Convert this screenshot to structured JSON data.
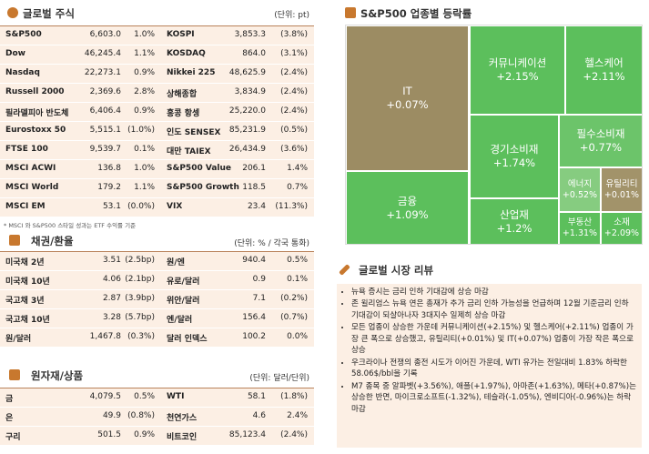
{
  "equities": {
    "title": "글로벌 주식",
    "unit": "(단위: pt)",
    "rows": [
      [
        "S&P500",
        "6,603.0",
        "1.0%",
        "KOSPI",
        "3,853.3",
        "(3.8%)"
      ],
      [
        "Dow",
        "46,245.4",
        "1.1%",
        "KOSDAQ",
        "864.0",
        "(3.1%)"
      ],
      [
        "Nasdaq",
        "22,273.1",
        "0.9%",
        "Nikkei 225",
        "48,625.9",
        "(2.4%)"
      ],
      [
        "Russell 2000",
        "2,369.6",
        "2.8%",
        "상해종합",
        "3,834.9",
        "(2.4%)"
      ],
      [
        "필라델피아 반도체",
        "6,406.4",
        "0.9%",
        "홍콩 항셍",
        "25,220.0",
        "(2.4%)"
      ],
      [
        "Eurostoxx 50",
        "5,515.1",
        "(1.0%)",
        "인도 SENSEX",
        "85,231.9",
        "(0.5%)"
      ],
      [
        "FTSE 100",
        "9,539.7",
        "0.1%",
        "대만 TAIEX",
        "26,434.9",
        "(3.6%)"
      ],
      [
        "MSCI ACWI",
        "136.8",
        "1.0%",
        "S&P500 Value",
        "206.1",
        "1.4%"
      ],
      [
        "MSCI World",
        "179.2",
        "1.1%",
        "S&P500 Growth",
        "118.5",
        "0.7%"
      ],
      [
        "MSCI EM",
        "53.1",
        "(0.0%)",
        "VIX",
        "23.4",
        "(11.3%)"
      ]
    ],
    "note": "* MSCI 와 S&P500 스타일 성과는 ETF 수익률 기준"
  },
  "bonds_fx": {
    "title": "채권/환율",
    "unit": "(단위: % / 각국 통화)",
    "rows": [
      [
        "미국채 2년",
        "3.51",
        "(2.5bp)",
        "원/엔",
        "940.4",
        "0.5%"
      ],
      [
        "미국채 10년",
        "4.06",
        "(2.1bp)",
        "유로/달러",
        "0.9",
        "0.1%"
      ],
      [
        "국고채 3년",
        "2.87",
        "(3.9bp)",
        "위안/달러",
        "7.1",
        "(0.2%)"
      ],
      [
        "국고채 10년",
        "3.28",
        "(5.7bp)",
        "엔/달러",
        "156.4",
        "(0.7%)"
      ],
      [
        "원/달러",
        "1,467.8",
        "(0.3%)",
        "달러 인덱스",
        "100.2",
        "0.0%"
      ]
    ]
  },
  "commodities": {
    "title": "원자재/상품",
    "unit": "(단위: 달러/단위)",
    "rows": [
      [
        "금",
        "4,079.5",
        "0.5%",
        "WTI",
        "58.1",
        "(1.8%)"
      ],
      [
        "은",
        "49.9",
        "(0.8%)",
        "천연가스",
        "4.6",
        "2.4%"
      ],
      [
        "구리",
        "501.5",
        "0.9%",
        "비트코인",
        "85,123.4",
        "(2.4%)"
      ]
    ]
  },
  "sector_map": {
    "title": "S&P500 업종별 등락률",
    "tiles": [
      {
        "label": "IT",
        "change": "+0.07%",
        "color": "#9c8c63"
      },
      {
        "label": "커뮤니케이션",
        "change": "+2.15%",
        "color": "#5cbf5c"
      },
      {
        "label": "헬스케어",
        "change": "+2.11%",
        "color": "#5cbf5c"
      },
      {
        "label": "필수소비재",
        "change": "+0.77%",
        "color": "#6cc46a"
      },
      {
        "label": "경기소비재",
        "change": "+1.74%",
        "color": "#5cbf5c"
      },
      {
        "label": "에너지",
        "change": "+0.52%",
        "color": "#86cc80"
      },
      {
        "label": "유틸리티",
        "change": "+0.01%",
        "color": "#a2936a"
      },
      {
        "label": "금융",
        "change": "+1.09%",
        "color": "#5cbf5c"
      },
      {
        "label": "산업재",
        "change": "+1.2%",
        "color": "#5cbf5c"
      },
      {
        "label": "부동산",
        "change": "+1.31%",
        "color": "#5cbf5c"
      },
      {
        "label": "소재",
        "change": "+2.09%",
        "color": "#5cbf5c"
      }
    ]
  },
  "review": {
    "title": "글로벌 시장 리뷰",
    "items": [
      "뉴욕 증시는 금리 인하 기대감에 상승 마감",
      "존 윌리엄스 뉴욕 연은 총재가 추가 금리 인하 가능성을 언급하며 12월 기준금리 인하 기대감이 되살아나자 3대지수 일제히 상승 마감",
      "모든 업종이 상승한 가운데 커뮤니케이션(+2.15%) 및 헬스케어(+2.11%) 업종이 가장 큰 폭으로 상승했고, 유틸리티(+0.01%) 및 IT(+0.07%) 업종이 가장 작은 폭으로 상승",
      "우크라이나 전쟁의 종전 시도가 이어진 가운데, WTI 유가는 전일대비 1.83% 하락한 58.06$/bbl을 기록",
      "M7 종목 중 알파벳(+3.56%), 애플(+1.97%), 아마존(+1.63%), 메타(+0.87%)는 상승한 반면, 마이크로소프트(-1.32%), 테슬라(-1.05%), 엔비디아(-0.96%)는 하락 마감"
    ]
  }
}
